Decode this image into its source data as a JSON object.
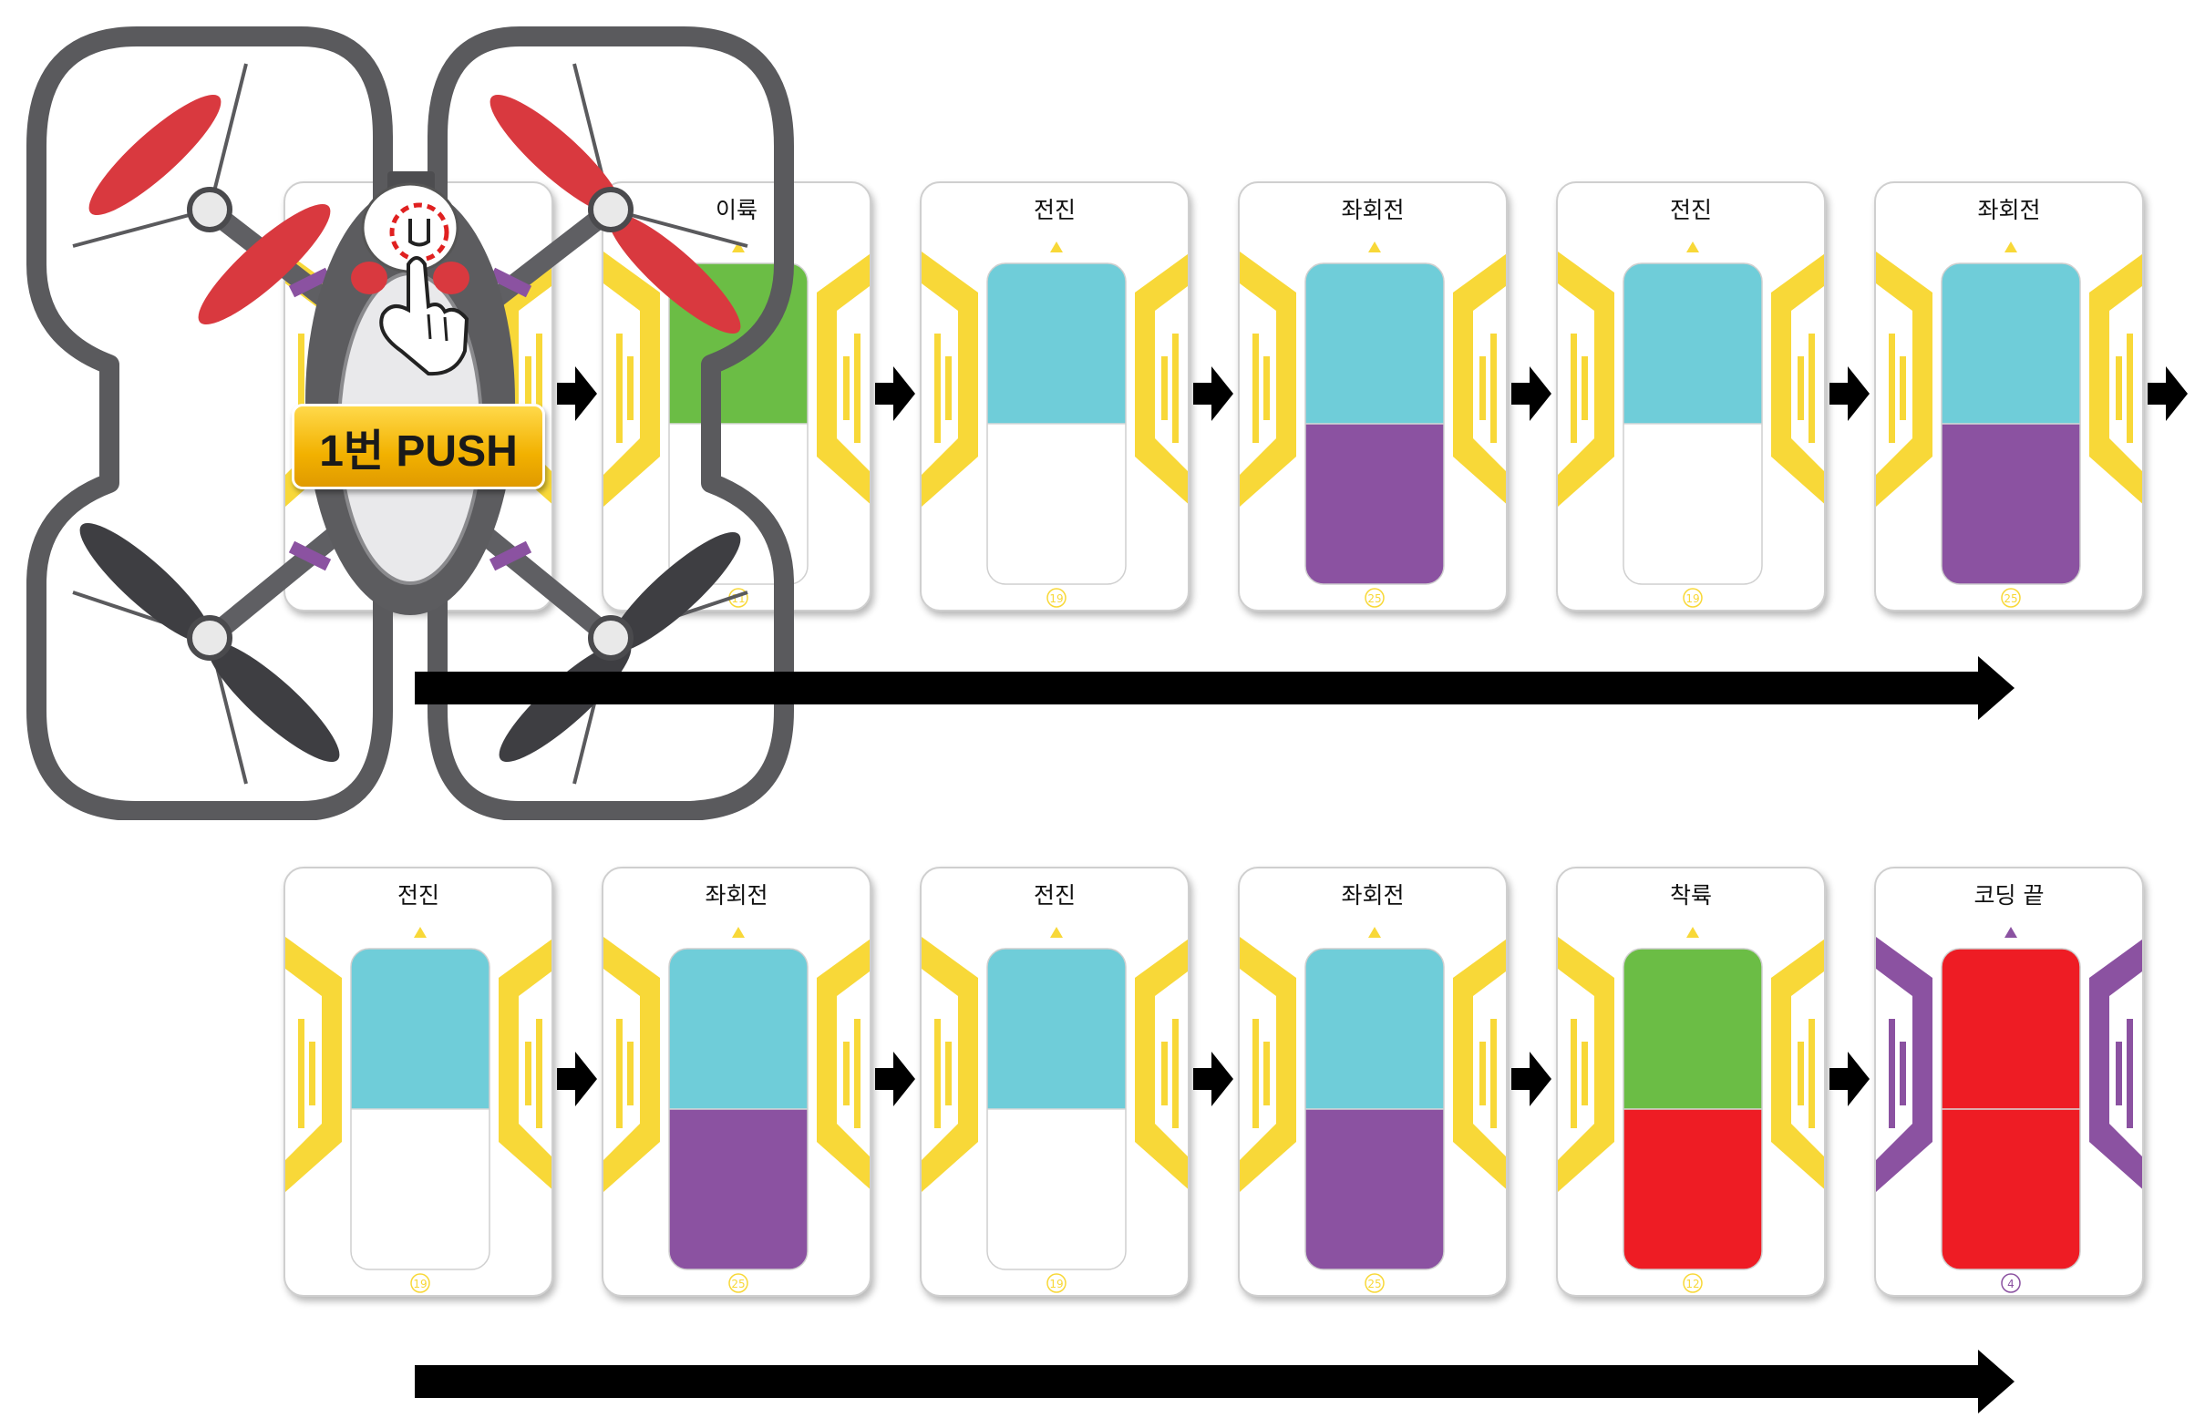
{
  "colors": {
    "yellow": "#f8d838",
    "cyan": "#6fcdd9",
    "purple": "#8b52a1",
    "green": "#6bbd45",
    "red": "#ee1c24",
    "white": "#ffffff",
    "arrow": "#000000"
  },
  "row1": [
    {
      "label": "",
      "top": "",
      "bottom": "",
      "num": "",
      "frame": "yellow"
    },
    {
      "label": "이륙",
      "top": "green",
      "bottom": "white",
      "num": "11",
      "frame": "yellow"
    },
    {
      "label": "전진",
      "top": "cyan",
      "bottom": "white",
      "num": "19",
      "frame": "yellow"
    },
    {
      "label": "좌회전",
      "top": "cyan",
      "bottom": "purple",
      "num": "25",
      "frame": "yellow"
    },
    {
      "label": "전진",
      "top": "cyan",
      "bottom": "white",
      "num": "19",
      "frame": "yellow"
    },
    {
      "label": "좌회전",
      "top": "cyan",
      "bottom": "purple",
      "num": "25",
      "frame": "yellow"
    }
  ],
  "row2": [
    {
      "label": "전진",
      "top": "cyan",
      "bottom": "white",
      "num": "19",
      "frame": "yellow"
    },
    {
      "label": "좌회전",
      "top": "cyan",
      "bottom": "purple",
      "num": "25",
      "frame": "yellow"
    },
    {
      "label": "전진",
      "top": "cyan",
      "bottom": "white",
      "num": "19",
      "frame": "yellow"
    },
    {
      "label": "좌회전",
      "top": "cyan",
      "bottom": "purple",
      "num": "25",
      "frame": "yellow"
    },
    {
      "label": "착륙",
      "top": "green",
      "bottom": "red",
      "num": "12",
      "frame": "yellow"
    },
    {
      "label": "코딩 끝",
      "top": "red",
      "bottom": "red",
      "num": "4",
      "frame": "purple"
    }
  ],
  "push_label": "1번 PUSH",
  "icons": {
    "drone": "drone-icon",
    "hand": "hand-pointer-icon",
    "step_arrow": "arrow-right-icon",
    "flow_arrow": "long-arrow-right-icon"
  }
}
